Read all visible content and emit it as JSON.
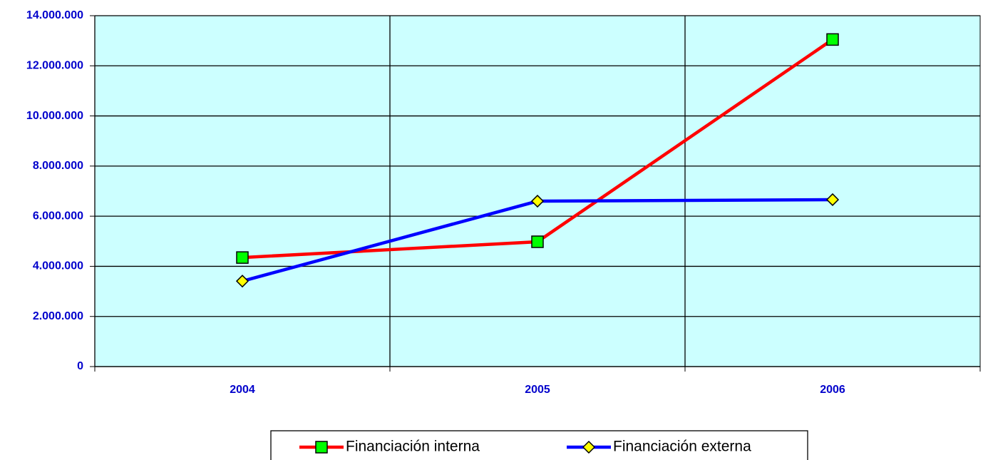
{
  "chart_data": {
    "type": "line",
    "categories": [
      "2004",
      "2005",
      "2006"
    ],
    "series": [
      {
        "name": "Financiación interna",
        "color": "#ff0000",
        "marker_color": "#00ff00",
        "marker": "square",
        "values": [
          4350000,
          4980000,
          13050000
        ]
      },
      {
        "name": "Financiación externa",
        "color": "#0000ff",
        "marker_color": "#ffff00",
        "marker": "diamond",
        "values": [
          3410000,
          6600000,
          6660000
        ]
      }
    ],
    "ylim": [
      0,
      14000000
    ],
    "yticks": [
      0,
      {
        "value": 2000000,
        "label": "2.000.000"
      },
      {
        "value": 4000000,
        "label": "4.000.000"
      },
      {
        "value": 6000000,
        "label": "6.000.000"
      },
      {
        "value": 8000000,
        "label": "8.000.000"
      },
      {
        "value": 10000000,
        "label": "10.000.000"
      },
      {
        "value": 12000000,
        "label": "12.000.000"
      },
      {
        "value": 14000000,
        "label": "14.000.000"
      }
    ],
    "grid": true,
    "background": "#ccffff",
    "legend": "bottom"
  }
}
